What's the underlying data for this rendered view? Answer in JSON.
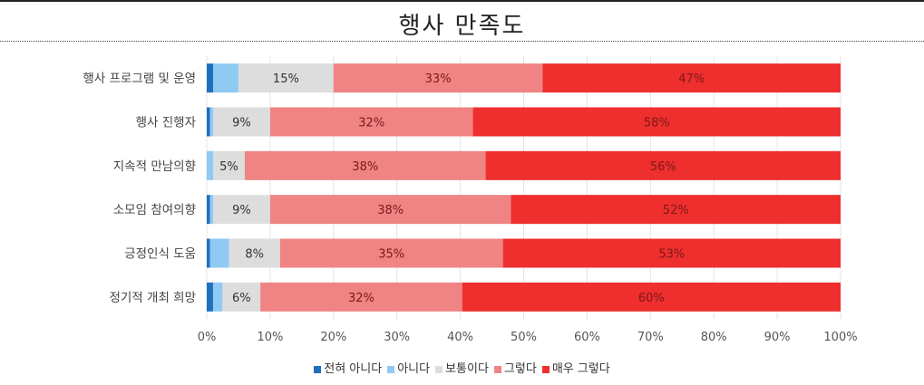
{
  "title": "행사 만족도",
  "chart_data": {
    "type": "bar",
    "orientation": "horizontal",
    "stacked": true,
    "categories": [
      "행사 프로그램 및 운영",
      "행사 진행자",
      "지속적 만남의향",
      "소모임 참여의향",
      "긍정인식 도움",
      "정기적 개최 희망"
    ],
    "series": [
      {
        "name": "전혀 아니다",
        "color": "#1f6fbf",
        "values": [
          1,
          0.5,
          0,
          0.5,
          0.5,
          1
        ]
      },
      {
        "name": "아니다",
        "color": "#8fcaf3",
        "values": [
          4,
          0.5,
          1,
          0.5,
          3,
          1.5
        ]
      },
      {
        "name": "보통이다",
        "color": "#dddddd",
        "values": [
          15,
          9,
          5,
          9,
          8,
          6
        ]
      },
      {
        "name": "그렇다",
        "color": "#f08383",
        "values": [
          33,
          32,
          38,
          38,
          35,
          32
        ]
      },
      {
        "name": "매우 그렇다",
        "color": "#ef2e2e",
        "values": [
          47,
          58,
          56,
          52,
          53,
          60
        ]
      }
    ],
    "data_labels": [
      [
        "",
        "",
        "15%",
        "33%",
        "47%"
      ],
      [
        "",
        "",
        "9%",
        "32%",
        "58%"
      ],
      [
        "",
        "",
        "5%",
        "38%",
        "56%"
      ],
      [
        "",
        "",
        "9%",
        "38%",
        "52%"
      ],
      [
        "",
        "",
        "8%",
        "35%",
        "53%"
      ],
      [
        "",
        "",
        "6%",
        "32%",
        "60%"
      ]
    ],
    "xticks": [
      "0%",
      "10%",
      "20%",
      "30%",
      "40%",
      "50%",
      "60%",
      "70%",
      "80%",
      "90%",
      "100%"
    ],
    "xlim": [
      0,
      100
    ],
    "grid": true,
    "legend_position": "bottom"
  }
}
